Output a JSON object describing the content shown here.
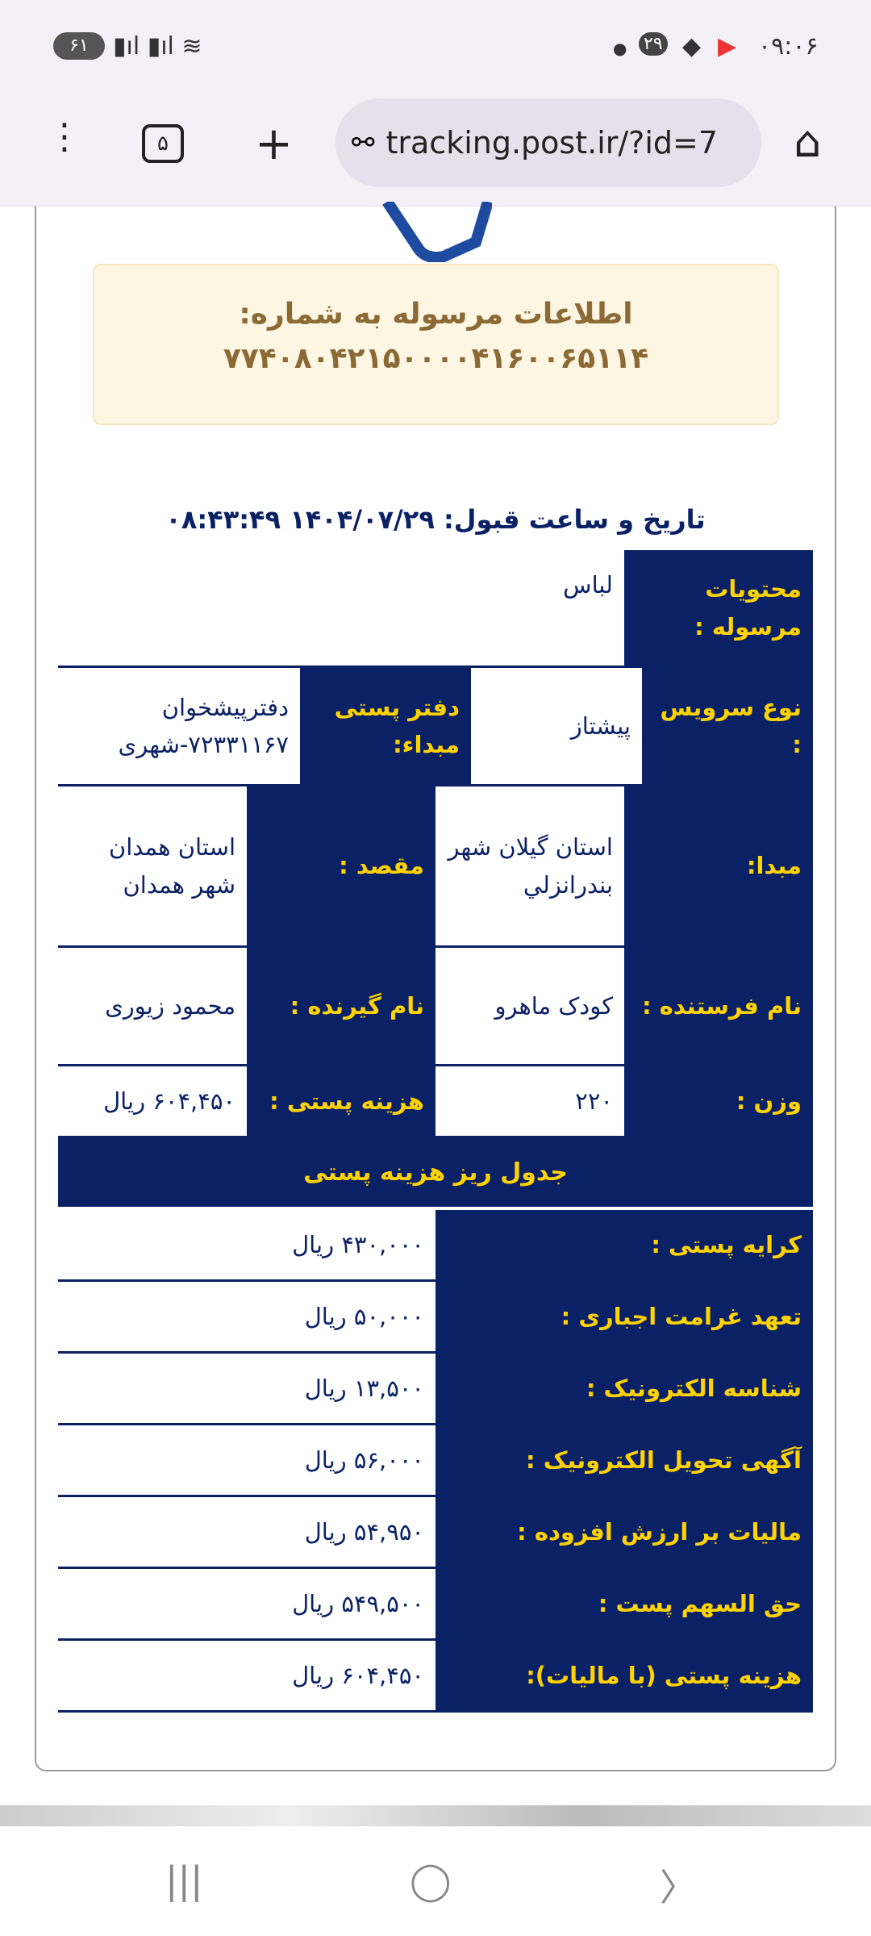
{
  "status": {
    "time": "۰۹:۰۶",
    "notif_count": "۲۹",
    "battery": "۶۱"
  },
  "browser": {
    "url": "tracking.post.ir/?id=7",
    "tab_count": "۵"
  },
  "notice": {
    "title": "اطلاعات مرسوله به شماره:",
    "number": "۷۷۴۰۸۰۴۲۱۵۰۰۰۰۴۱۶۰۰۶۵۱۱۴"
  },
  "accept_date": "تاریخ و ساعت قبول: ۱۴۰۴/۰۷/۲۹ ۰۸:۴۳:۴۹",
  "details": {
    "contents_label": "محتویات مرسوله :",
    "contents": "لباس",
    "service_label": "نوع سرویس :",
    "service": "پیشتاز",
    "office_label": "دفتر پستی مبداء:",
    "office": "دفترپیشخوان ۷۲۳۳۱۱۶۷-شهری",
    "origin_label": "مبدا:",
    "origin": "استان گیلان شهر بندرانزلي",
    "dest_label": "مقصد :",
    "dest": "استان همدان شهر همدان",
    "sender_label": "نام فرستنده :",
    "sender": "کودک ماهرو",
    "receiver_label": "نام گیرنده :",
    "receiver": "محمود زیوری",
    "weight_label": "وزن :",
    "weight": "۲۲۰",
    "fee_label": "هزینه پستی :",
    "fee": "۶۰۴,۴۵۰ ریال"
  },
  "fees": {
    "title": "جدول ریز هزینه پستی",
    "rows": [
      {
        "label": "کرایه پستی :",
        "value": "۴۳۰,۰۰۰ ریال"
      },
      {
        "label": "تعهد غرامت اجباری :",
        "value": "۵۰,۰۰۰ ریال"
      },
      {
        "label": "شناسه الکترونیک :",
        "value": "۱۳,۵۰۰ ریال"
      },
      {
        "label": "آگهی تحویل الکترونیک :",
        "value": "۵۶,۰۰۰ ریال"
      },
      {
        "label": "مالیات بر ارزش افزوده :",
        "value": "۵۴,۹۵۰ ریال"
      },
      {
        "label": "حق السهم پست :",
        "value": "۵۴۹,۵۰۰ ریال"
      },
      {
        "label": "هزینه پستی (با مالیات):",
        "value": "۶۰۴,۴۵۰ ریال"
      }
    ]
  },
  "colors": {
    "navy": "#0a2166",
    "yellow": "#ffd200"
  }
}
